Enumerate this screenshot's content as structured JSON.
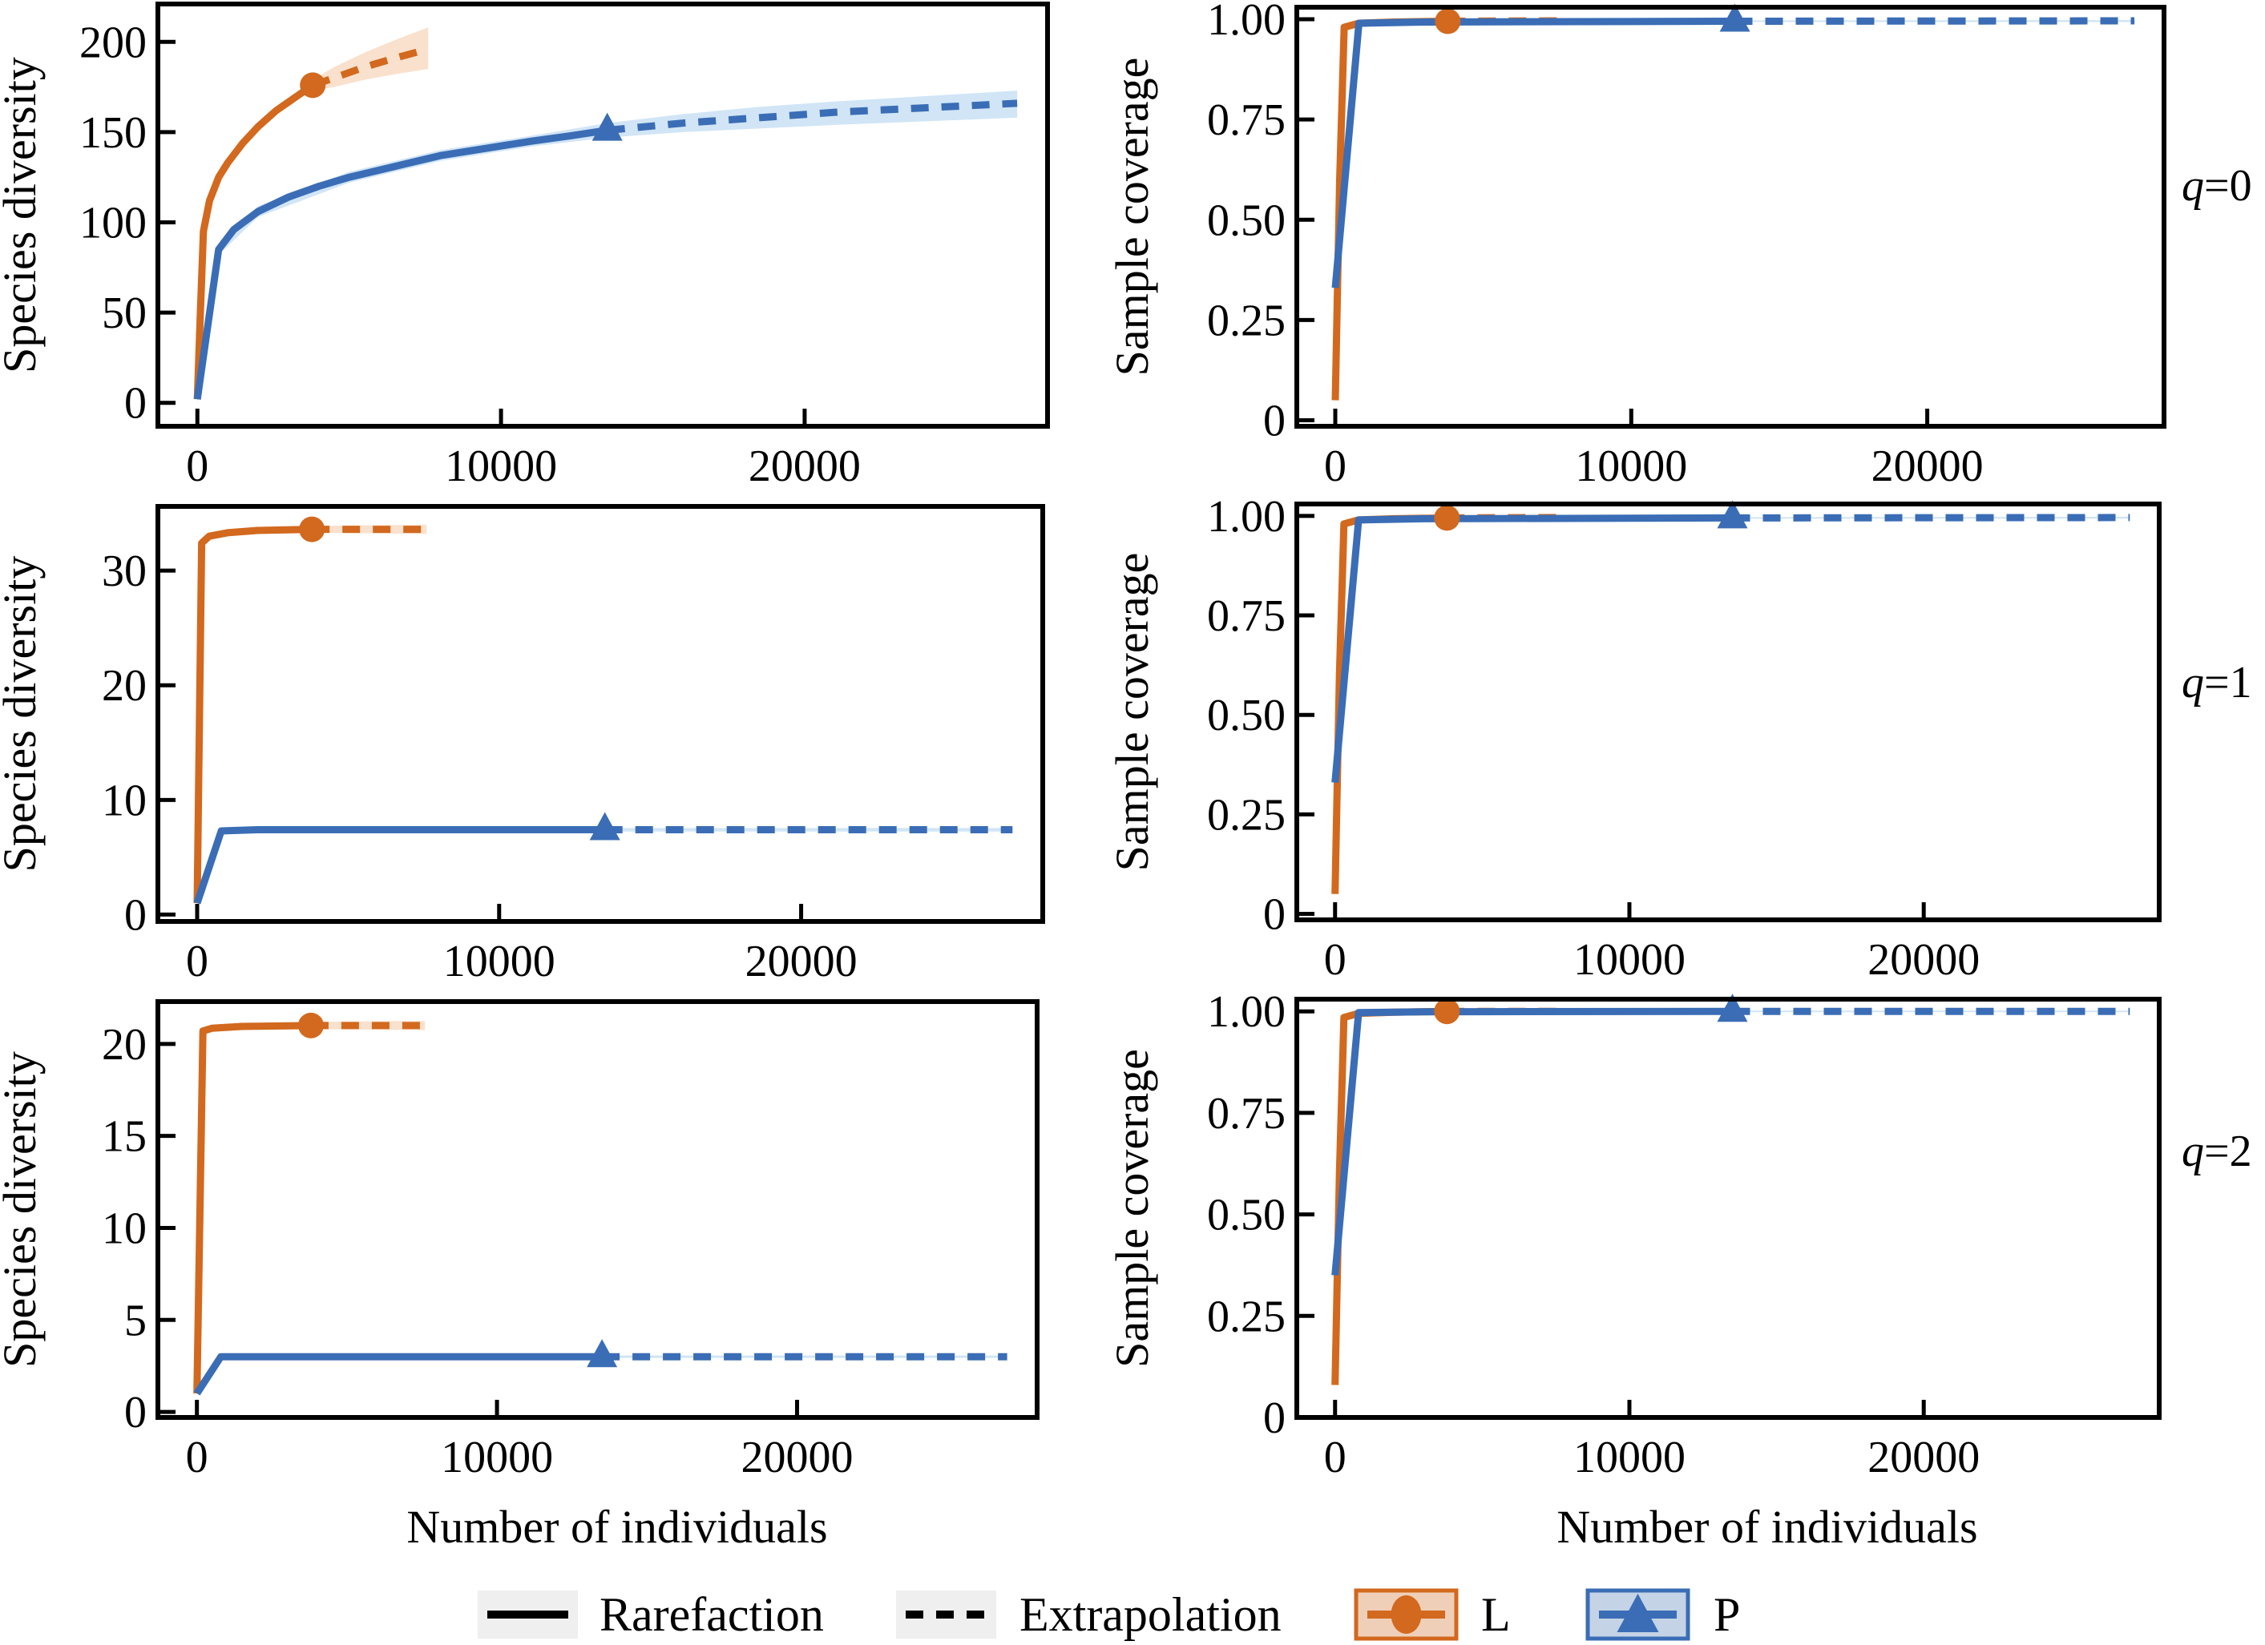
{
  "figure": {
    "x_axis_title": "Number of individuals",
    "left_y_title": "Species diversity",
    "right_y_title": "Sample coverage"
  },
  "legend": {
    "items": [
      {
        "key": "rarefaction",
        "label": "Rarefaction",
        "style": "solid"
      },
      {
        "key": "extrapolation",
        "label": "Extrapolation",
        "style": "dashed"
      },
      {
        "key": "L",
        "label": "L",
        "marker": "circle",
        "color": "#D2691E"
      },
      {
        "key": "P",
        "label": "P",
        "marker": "triangle",
        "color": "#3A6DB5"
      }
    ]
  },
  "colors": {
    "L": "#D2691E",
    "L_band": "#F9DCC4",
    "P": "#3A6DB5",
    "P_band": "#C9E0F5"
  },
  "chart_data": [
    {
      "id": "diversity-q0",
      "type": "line",
      "row": 0,
      "col": 0,
      "order_label": "q=0",
      "xlabel": "",
      "ylabel": "Species diversity",
      "xlim": [
        -1300,
        28000
      ],
      "ylim": [
        -13,
        221
      ],
      "xticks": [
        0,
        10000,
        20000
      ],
      "xtick_labels": [
        "0",
        "10000",
        "20000"
      ],
      "yticks": [
        0,
        50,
        100,
        150,
        200
      ],
      "ytick_labels": [
        "0",
        "50",
        "100",
        "150",
        "200"
      ],
      "series": [
        {
          "name": "L",
          "marker": "circle",
          "observed": [
            3800,
            176
          ],
          "rarefaction": [
            [
              0,
              2
            ],
            [
              100,
              50
            ],
            [
              200,
              95
            ],
            [
              400,
              112
            ],
            [
              700,
              125
            ],
            [
              1000,
              133
            ],
            [
              1500,
              144
            ],
            [
              2000,
              153
            ],
            [
              2600,
              162
            ],
            [
              3200,
              169
            ],
            [
              3800,
              176
            ]
          ],
          "extrapolation": [
            [
              3800,
              176
            ],
            [
              4500,
              180
            ],
            [
              5500,
              186
            ],
            [
              6500,
              191
            ],
            [
              7600,
              196
            ]
          ],
          "band": {
            "x": [
              3800,
              4500,
              5500,
              6500,
              7600
            ],
            "lower": [
              173,
              175,
              179,
              182,
              185
            ],
            "upper": [
              179,
              186,
              194,
              201,
              208
            ]
          }
        },
        {
          "name": "P",
          "marker": "triangle",
          "observed": [
            13500,
            151
          ],
          "rarefaction": [
            [
              0,
              2
            ],
            [
              700,
              85
            ],
            [
              1200,
              96
            ],
            [
              2000,
              106
            ],
            [
              3000,
              114
            ],
            [
              4000,
              120
            ],
            [
              5000,
              125
            ],
            [
              6500,
              131
            ],
            [
              8000,
              137
            ],
            [
              9500,
              141
            ],
            [
              11000,
              145
            ],
            [
              12300,
              148
            ],
            [
              13500,
              151
            ]
          ],
          "extrapolation": [
            [
              13500,
              151
            ],
            [
              16000,
              155
            ],
            [
              18500,
              158
            ],
            [
              21000,
              161
            ],
            [
              24000,
              163.5
            ],
            [
              27000,
              166
            ]
          ],
          "band": {
            "x": [
              0,
              700,
              2000,
              5000,
              8000,
              11000,
              13500,
              16000,
              18500,
              21000,
              24000,
              27000
            ],
            "lower": [
              0,
              82,
              103,
              122,
              134,
              142,
              147,
              150,
              152,
              154,
              156,
              158
            ],
            "upper": [
              4,
              88,
              109,
              128,
              140,
              148,
              155,
              160,
              164,
              167,
              170,
              173
            ]
          }
        }
      ]
    },
    {
      "id": "coverage-q0",
      "type": "line",
      "row": 0,
      "col": 1,
      "order_label": "q=0",
      "xlabel": "",
      "ylabel": "Sample coverage",
      "xlim": [
        -1300,
        28000
      ],
      "ylim": [
        -0.015,
        1.03
      ],
      "xticks": [
        0,
        10000,
        20000
      ],
      "xtick_labels": [
        "0",
        "10000",
        "20000"
      ],
      "yticks": [
        0,
        0.25,
        0.5,
        0.75,
        1.0
      ],
      "ytick_labels": [
        "0",
        "0.25",
        "0.50",
        "0.75",
        "1.00"
      ],
      "series": [
        {
          "name": "L",
          "marker": "circle",
          "observed": [
            3800,
            0.995
          ],
          "rarefaction": [
            [
              0,
              0.05
            ],
            [
              150,
              0.6
            ],
            [
              300,
              0.98
            ],
            [
              800,
              0.99
            ],
            [
              2000,
              0.993
            ],
            [
              3800,
              0.995
            ]
          ],
          "extrapolation": [
            [
              3800,
              0.995
            ],
            [
              7600,
              0.996
            ]
          ],
          "band": {
            "x": [
              3800,
              7600
            ],
            "lower": [
              0.993,
              0.993
            ],
            "upper": [
              0.997,
              0.998
            ]
          }
        },
        {
          "name": "P",
          "marker": "triangle",
          "observed": [
            13500,
            0.995
          ],
          "rarefaction": [
            [
              0,
              0.33
            ],
            [
              800,
              0.99
            ],
            [
              3000,
              0.993
            ],
            [
              13500,
              0.995
            ]
          ],
          "extrapolation": [
            [
              13500,
              0.995
            ],
            [
              27000,
              0.996
            ]
          ],
          "band": {
            "x": [
              13500,
              27000
            ],
            "lower": [
              0.993,
              0.993
            ],
            "upper": [
              0.997,
              0.998
            ]
          }
        }
      ]
    },
    {
      "id": "diversity-q1",
      "type": "line",
      "row": 1,
      "col": 0,
      "order_label": "q=1",
      "xlabel": "",
      "ylabel": "Species diversity",
      "xlim": [
        -1300,
        28000
      ],
      "ylim": [
        -0.6,
        35.6
      ],
      "xticks": [
        0,
        10000,
        20000
      ],
      "xtick_labels": [
        "0",
        "10000",
        "20000"
      ],
      "yticks": [
        0,
        10,
        20,
        30
      ],
      "ytick_labels": [
        "0",
        "10",
        "20",
        "30"
      ],
      "series": [
        {
          "name": "L",
          "marker": "circle",
          "observed": [
            3800,
            33.6
          ],
          "rarefaction": [
            [
              0,
              1
            ],
            [
              150,
              32.4
            ],
            [
              400,
              33.0
            ],
            [
              1000,
              33.3
            ],
            [
              2000,
              33.5
            ],
            [
              3800,
              33.6
            ]
          ],
          "extrapolation": [
            [
              3800,
              33.6
            ],
            [
              7600,
              33.6
            ]
          ],
          "band": {
            "x": [
              3800,
              7600
            ],
            "lower": [
              33.3,
              33.2
            ],
            "upper": [
              33.9,
              34.0
            ]
          }
        },
        {
          "name": "P",
          "marker": "triangle",
          "observed": [
            13500,
            7.4
          ],
          "rarefaction": [
            [
              0,
              1
            ],
            [
              800,
              7.3
            ],
            [
              2000,
              7.4
            ],
            [
              13500,
              7.4
            ]
          ],
          "extrapolation": [
            [
              13500,
              7.4
            ],
            [
              27000,
              7.4
            ]
          ],
          "band": {
            "x": [
              13500,
              27000
            ],
            "lower": [
              7.25,
              7.25
            ],
            "upper": [
              7.55,
              7.55
            ]
          }
        }
      ]
    },
    {
      "id": "coverage-q1",
      "type": "line",
      "row": 1,
      "col": 1,
      "order_label": "q=1",
      "xlabel": "",
      "ylabel": "Sample coverage",
      "xlim": [
        -1300,
        28000
      ],
      "ylim": [
        -0.015,
        1.03
      ],
      "xticks": [
        0,
        10000,
        20000
      ],
      "xtick_labels": [
        "0",
        "10000",
        "20000"
      ],
      "yticks": [
        0,
        0.25,
        0.5,
        0.75,
        1.0
      ],
      "ytick_labels": [
        "0",
        "0.25",
        "0.50",
        "0.75",
        "1.00"
      ],
      "series": [
        {
          "name": "L",
          "marker": "circle",
          "observed": [
            3800,
            0.995
          ],
          "rarefaction": [
            [
              0,
              0.05
            ],
            [
              150,
              0.6
            ],
            [
              300,
              0.98
            ],
            [
              800,
              0.99
            ],
            [
              2000,
              0.993
            ],
            [
              3800,
              0.995
            ]
          ],
          "extrapolation": [
            [
              3800,
              0.995
            ],
            [
              7600,
              0.996
            ]
          ],
          "band": {
            "x": [
              3800,
              7600
            ],
            "lower": [
              0.993,
              0.993
            ],
            "upper": [
              0.997,
              0.998
            ]
          }
        },
        {
          "name": "P",
          "marker": "triangle",
          "observed": [
            13500,
            0.995
          ],
          "rarefaction": [
            [
              0,
              0.33
            ],
            [
              800,
              0.99
            ],
            [
              3000,
              0.993
            ],
            [
              13500,
              0.995
            ]
          ],
          "extrapolation": [
            [
              13500,
              0.995
            ],
            [
              27000,
              0.996
            ]
          ],
          "band": {
            "x": [
              13500,
              27000
            ],
            "lower": [
              0.993,
              0.993
            ],
            "upper": [
              0.997,
              0.998
            ]
          }
        }
      ]
    },
    {
      "id": "diversity-q2",
      "type": "line",
      "row": 2,
      "col": 0,
      "order_label": "q=2",
      "xlabel": "Number of individuals",
      "ylabel": "Species diversity",
      "xlim": [
        -1300,
        28000
      ],
      "ylim": [
        -0.3,
        22.3
      ],
      "xticks": [
        0,
        10000,
        20000
      ],
      "xtick_labels": [
        "0",
        "10000",
        "20000"
      ],
      "yticks": [
        0,
        5,
        10,
        15,
        20
      ],
      "ytick_labels": [
        "0",
        "5",
        "10",
        "15",
        "20"
      ],
      "series": [
        {
          "name": "L",
          "marker": "circle",
          "observed": [
            3800,
            21.0
          ],
          "rarefaction": [
            [
              0,
              1
            ],
            [
              200,
              20.7
            ],
            [
              500,
              20.85
            ],
            [
              1500,
              20.95
            ],
            [
              3800,
              21.0
            ]
          ],
          "extrapolation": [
            [
              3800,
              21.0
            ],
            [
              7600,
              21.0
            ]
          ],
          "band": {
            "x": [
              3800,
              7600
            ],
            "lower": [
              20.8,
              20.75
            ],
            "upper": [
              21.2,
              21.25
            ]
          }
        },
        {
          "name": "P",
          "marker": "triangle",
          "observed": [
            13500,
            3.0
          ],
          "rarefaction": [
            [
              0,
              1
            ],
            [
              800,
              3.0
            ],
            [
              2000,
              3.0
            ],
            [
              13500,
              3.0
            ]
          ],
          "extrapolation": [
            [
              13500,
              3.0
            ],
            [
              27000,
              3.0
            ]
          ],
          "band": {
            "x": [
              13500,
              27000
            ],
            "lower": [
              2.93,
              2.93
            ],
            "upper": [
              3.07,
              3.07
            ]
          }
        }
      ]
    },
    {
      "id": "coverage-q2",
      "type": "line",
      "row": 2,
      "col": 1,
      "order_label": "q=2",
      "xlabel": "Number of individuals",
      "ylabel": "Sample coverage",
      "xlim": [
        -1300,
        28000
      ],
      "ylim": [
        0,
        1.03
      ],
      "xticks": [
        0,
        10000,
        20000
      ],
      "xtick_labels": [
        "0",
        "10000",
        "20000"
      ],
      "yticks": [
        0,
        0.25,
        0.5,
        0.75,
        1.0
      ],
      "ytick_labels": [
        "0",
        "0.25",
        "0.50",
        "0.75",
        "1.00"
      ],
      "series": [
        {
          "name": "L",
          "marker": "circle",
          "observed": [
            3800,
            1.0
          ],
          "rarefaction": [
            [
              0,
              0.08
            ],
            [
              150,
              0.6
            ],
            [
              300,
              0.985
            ],
            [
              800,
              0.995
            ],
            [
              2000,
              0.998
            ],
            [
              3800,
              1.0
            ]
          ],
          "extrapolation": [
            [
              3800,
              1.0
            ],
            [
              7600,
              1.0
            ]
          ],
          "band": {
            "x": [
              3800,
              7600
            ],
            "lower": [
              0.998,
              0.998
            ],
            "upper": [
              1.002,
              1.002
            ]
          }
        },
        {
          "name": "P",
          "marker": "triangle",
          "observed": [
            13500,
            1.0
          ],
          "rarefaction": [
            [
              0,
              0.35
            ],
            [
              800,
              0.997
            ],
            [
              3000,
              0.999
            ],
            [
              13500,
              1.0
            ]
          ],
          "extrapolation": [
            [
              13500,
              1.0
            ],
            [
              27000,
              1.0
            ]
          ],
          "band": {
            "x": [
              13500,
              27000
            ],
            "lower": [
              0.998,
              0.998
            ],
            "upper": [
              1.002,
              1.002
            ]
          }
        }
      ]
    }
  ]
}
